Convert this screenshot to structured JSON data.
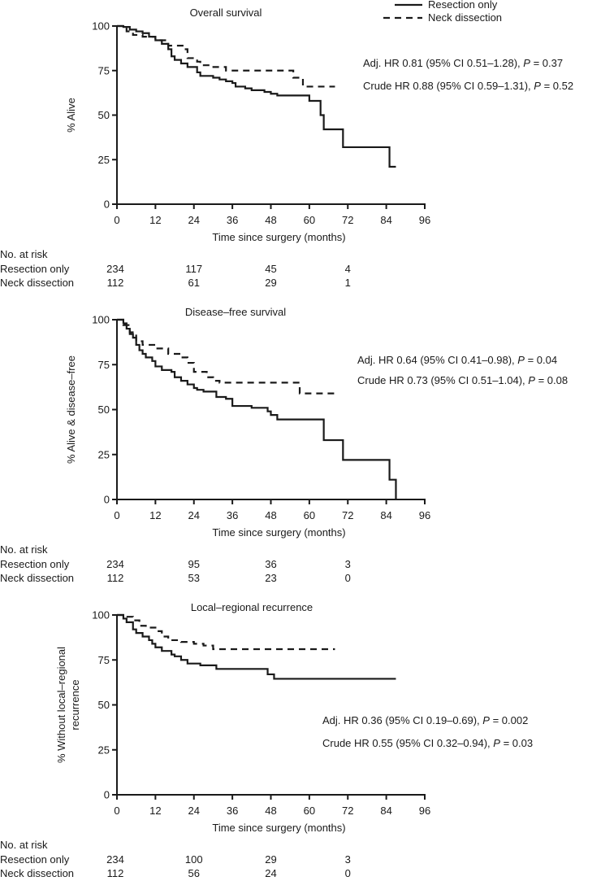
{
  "legend": {
    "entries": [
      {
        "label": "Resection only",
        "style": "solid"
      },
      {
        "label": "Neck dissection",
        "style": "dashed"
      }
    ]
  },
  "risk_table_label": "No. at risk",
  "chart_data": [
    {
      "type": "line",
      "subtype": "kaplan-meier step",
      "title": "Overall survival",
      "xlabel": "Time since surgery (months)",
      "ylabel": [
        "% Alive"
      ],
      "xlim": [
        0,
        96
      ],
      "ylim": [
        0,
        100
      ],
      "xticks": [
        0,
        12,
        24,
        36,
        48,
        60,
        72,
        84,
        96
      ],
      "yticks": [
        0,
        25,
        50,
        75,
        100
      ],
      "grid": false,
      "legend_position": "top-right",
      "annotations": [
        "Adj. HR 0.81 (95% CI 0.51–1.28), P = 0.37",
        "Crude HR 0.88 (95% CI 0.59–1.31), P = 0.52"
      ],
      "series": [
        {
          "name": "Resection only",
          "style": "solid",
          "points": [
            [
              0,
              100
            ],
            [
              2,
              99.5
            ],
            [
              4,
              98
            ],
            [
              6,
              97
            ],
            [
              8,
              96
            ],
            [
              10,
              94
            ],
            [
              12,
              92
            ],
            [
              14,
              90
            ],
            [
              16,
              87
            ],
            [
              17,
              83
            ],
            [
              18,
              81
            ],
            [
              20,
              79
            ],
            [
              22,
              77
            ],
            [
              25,
              74
            ],
            [
              26,
              72
            ],
            [
              30,
              71
            ],
            [
              32,
              70
            ],
            [
              34,
              69
            ],
            [
              36,
              68
            ],
            [
              37,
              66
            ],
            [
              40,
              65
            ],
            [
              42,
              64
            ],
            [
              46,
              63
            ],
            [
              48,
              62
            ],
            [
              50,
              61
            ],
            [
              60,
              58
            ],
            [
              63.5,
              50
            ],
            [
              64.5,
              42
            ],
            [
              70.5,
              32
            ],
            [
              85,
              21
            ],
            [
              87,
              21
            ]
          ]
        },
        {
          "name": "Neck dissection",
          "style": "dashed",
          "points": [
            [
              0,
              100
            ],
            [
              3,
              97
            ],
            [
              5,
              95
            ],
            [
              8,
              94
            ],
            [
              12,
              92
            ],
            [
              16,
              89
            ],
            [
              21,
              87
            ],
            [
              22,
              82
            ],
            [
              25,
              80
            ],
            [
              26,
              78
            ],
            [
              29,
              77
            ],
            [
              34,
              75
            ],
            [
              55,
              71
            ],
            [
              58,
              66
            ],
            [
              68,
              66
            ]
          ]
        }
      ],
      "at_risk": {
        "times": [
          0,
          24,
          48,
          72
        ],
        "rows": [
          {
            "label": "Resection only",
            "values": [
              234,
              117,
              45,
              4
            ]
          },
          {
            "label": "Neck dissection",
            "values": [
              112,
              61,
              29,
              1
            ]
          }
        ]
      }
    },
    {
      "type": "line",
      "subtype": "kaplan-meier step",
      "title": "Disease–free survival",
      "xlabel": "Time since surgery (months)",
      "ylabel": [
        "% Alive & disease–free"
      ],
      "xlim": [
        0,
        96
      ],
      "ylim": [
        0,
        100
      ],
      "xticks": [
        0,
        12,
        24,
        36,
        48,
        60,
        72,
        84,
        96
      ],
      "yticks": [
        0,
        25,
        50,
        75,
        100
      ],
      "grid": false,
      "annotations": [
        "Adj. HR 0.64 (95% CI 0.41–0.98), P = 0.04",
        "Crude HR 0.73 (95% CI 0.51–1.04), P = 0.08"
      ],
      "series": [
        {
          "name": "Resection only",
          "style": "solid",
          "points": [
            [
              0,
              100
            ],
            [
              2,
              98
            ],
            [
              3,
              95
            ],
            [
              4,
              92
            ],
            [
              5,
              90
            ],
            [
              6,
              86
            ],
            [
              7,
              83
            ],
            [
              8,
              81
            ],
            [
              9,
              79
            ],
            [
              11,
              77
            ],
            [
              12,
              74
            ],
            [
              14,
              72
            ],
            [
              17,
              71
            ],
            [
              18,
              68
            ],
            [
              20,
              66
            ],
            [
              22,
              64
            ],
            [
              24,
              62
            ],
            [
              25,
              61
            ],
            [
              27,
              60
            ],
            [
              31,
              57
            ],
            [
              34,
              56
            ],
            [
              36,
              52
            ],
            [
              42,
              51
            ],
            [
              47,
              49
            ],
            [
              48,
              47
            ],
            [
              50,
              44.5
            ],
            [
              64.5,
              33
            ],
            [
              70.5,
              22
            ],
            [
              85,
              11
            ],
            [
              87,
              0
            ]
          ]
        },
        {
          "name": "Neck dissection",
          "style": "dashed",
          "points": [
            [
              0,
              100
            ],
            [
              2,
              97
            ],
            [
              4,
              93
            ],
            [
              6,
              88
            ],
            [
              8,
              86
            ],
            [
              12,
              84
            ],
            [
              16,
              81
            ],
            [
              20,
              79
            ],
            [
              22,
              76
            ],
            [
              24,
              71
            ],
            [
              28,
              68
            ],
            [
              30,
              66
            ],
            [
              32,
              65
            ],
            [
              57,
              59
            ],
            [
              68,
              59
            ]
          ]
        }
      ],
      "at_risk": {
        "times": [
          0,
          24,
          48,
          72
        ],
        "rows": [
          {
            "label": "Resection only",
            "values": [
              234,
              95,
              36,
              3
            ]
          },
          {
            "label": "Neck dissection",
            "values": [
              112,
              53,
              23,
              0
            ]
          }
        ]
      }
    },
    {
      "type": "line",
      "subtype": "kaplan-meier step",
      "title": "Local–regional recurrence",
      "xlabel": "Time since surgery (months)",
      "ylabel": [
        "% Without local–regional",
        "recurrence"
      ],
      "xlim": [
        0,
        96
      ],
      "ylim": [
        0,
        100
      ],
      "xticks": [
        0,
        12,
        24,
        36,
        48,
        60,
        72,
        84,
        96
      ],
      "yticks": [
        0,
        25,
        50,
        75,
        100
      ],
      "grid": false,
      "annotations": [
        "Adj. HR 0.36 (95% CI 0.19–0.69), P = 0.002",
        "Crude HR 0.55 (95% CI 0.32–0.94), P = 0.03"
      ],
      "series": [
        {
          "name": "Resection only",
          "style": "solid",
          "points": [
            [
              0,
              100
            ],
            [
              2,
              98
            ],
            [
              3,
              96
            ],
            [
              5,
              92
            ],
            [
              6,
              90
            ],
            [
              8,
              88
            ],
            [
              10,
              86
            ],
            [
              11,
              84
            ],
            [
              12,
              82
            ],
            [
              14,
              80
            ],
            [
              17,
              78
            ],
            [
              18,
              77
            ],
            [
              20,
              75
            ],
            [
              22,
              73
            ],
            [
              26,
              72
            ],
            [
              31,
              70
            ],
            [
              47,
              67
            ],
            [
              49,
              64.5
            ],
            [
              87,
              64.5
            ]
          ]
        },
        {
          "name": "Neck dissection",
          "style": "dashed",
          "points": [
            [
              0,
              100
            ],
            [
              2,
              99
            ],
            [
              5,
              97
            ],
            [
              7,
              94
            ],
            [
              9,
              93
            ],
            [
              12,
              91
            ],
            [
              14,
              88
            ],
            [
              16,
              86
            ],
            [
              20,
              85
            ],
            [
              24,
              84
            ],
            [
              27,
              83
            ],
            [
              30,
              81
            ],
            [
              68,
              81
            ]
          ]
        }
      ],
      "at_risk": {
        "times": [
          0,
          24,
          48,
          72
        ],
        "rows": [
          {
            "label": "Resection only",
            "values": [
              234,
              100,
              29,
              3
            ]
          },
          {
            "label": "Neck dissection",
            "values": [
              112,
              56,
              24,
              0
            ]
          }
        ]
      }
    }
  ]
}
